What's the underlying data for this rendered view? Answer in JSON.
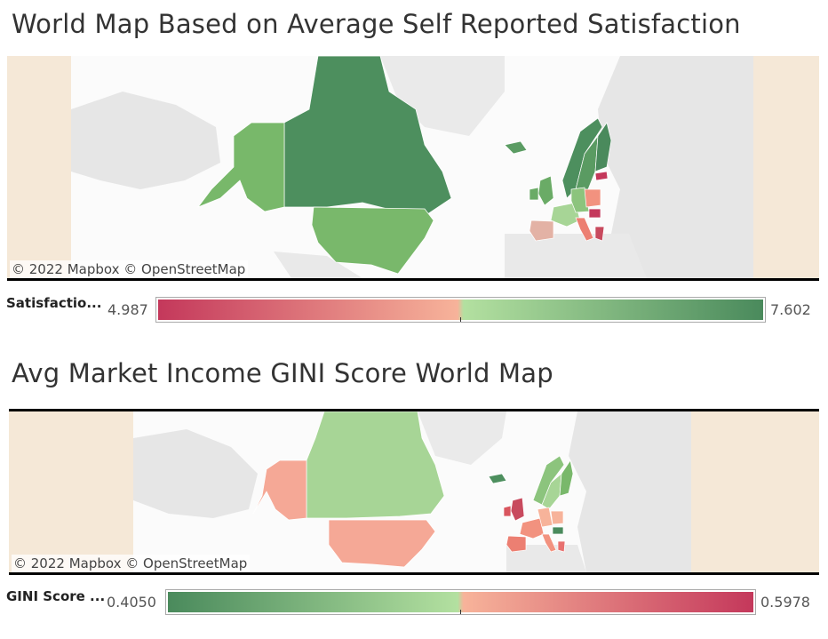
{
  "map1": {
    "title": "World Map Based on Average Self Reported Satisfaction",
    "attribution": "© 2022 Mapbox  © OpenStreetMap",
    "legend": {
      "label": "Satisfactio...",
      "min": "4.987",
      "max": "7.602",
      "color_low": "#c4385b",
      "color_mid_low": "#f7b39a",
      "color_mid_high": "#b3e0a0",
      "color_high": "#4a8a5c"
    },
    "colored_regions": [
      {
        "region": "Canada",
        "color": "#4d8f5e"
      },
      {
        "region": "United States",
        "color": "#79b86b"
      },
      {
        "region": "Alaska",
        "color": "#78b86a"
      },
      {
        "region": "Greenland",
        "color": "#eeeeee"
      },
      {
        "region": "Iceland",
        "color": "#5b9c63"
      },
      {
        "region": "Norway",
        "color": "#4d8f5e"
      },
      {
        "region": "Sweden",
        "color": "#5a9b62"
      },
      {
        "region": "Finland",
        "color": "#4a8a5c"
      },
      {
        "region": "Estonia",
        "color": "#e8716f"
      },
      {
        "region": "Latvia",
        "color": "#c4385b"
      },
      {
        "region": "United Kingdom",
        "color": "#6aab66"
      },
      {
        "region": "Ireland",
        "color": "#6aab66"
      },
      {
        "region": "Spain",
        "color": "#e3b2a5"
      },
      {
        "region": "France",
        "color": "#a7d596"
      },
      {
        "region": "Germany",
        "color": "#8cc47d"
      },
      {
        "region": "Poland",
        "color": "#f2927f"
      },
      {
        "region": "Italy",
        "color": "#ec7f72"
      },
      {
        "region": "Hungary",
        "color": "#c4385b"
      },
      {
        "region": "Greece",
        "color": "#c84a5e"
      },
      {
        "region": "Portugal",
        "color": "#e3b2a5"
      }
    ]
  },
  "map2": {
    "title": "Avg Market Income GINI Score World Map",
    "attribution": "© 2022 Mapbox  © OpenStreetMap",
    "legend": {
      "label": "GINI Score ...",
      "min": "0.4050",
      "max": "0.5978",
      "color_low": "#4a8a5c",
      "color_mid_low": "#b3e0a0",
      "color_mid_high": "#f7b39a",
      "color_high": "#c4385b"
    },
    "colored_regions": [
      {
        "region": "Canada",
        "color": "#a7d596"
      },
      {
        "region": "United States",
        "color": "#f5a896"
      },
      {
        "region": "Alaska",
        "color": "#f5a896"
      },
      {
        "region": "Iceland",
        "color": "#4d8f5e"
      },
      {
        "region": "Norway",
        "color": "#8cc47d"
      },
      {
        "region": "Sweden",
        "color": "#a7d596"
      },
      {
        "region": "Finland",
        "color": "#79b86b"
      },
      {
        "region": "United Kingdom",
        "color": "#c84a5e"
      },
      {
        "region": "Ireland",
        "color": "#d9565f"
      },
      {
        "region": "France",
        "color": "#f2927f"
      },
      {
        "region": "Germany",
        "color": "#f7b39a"
      },
      {
        "region": "Spain",
        "color": "#ec7f72"
      },
      {
        "region": "Italy",
        "color": "#f2927f"
      },
      {
        "region": "Hungary",
        "color": "#4a8a5c"
      },
      {
        "region": "Poland",
        "color": "#f7b39a"
      },
      {
        "region": "Greece",
        "color": "#e8716f"
      }
    ]
  }
}
